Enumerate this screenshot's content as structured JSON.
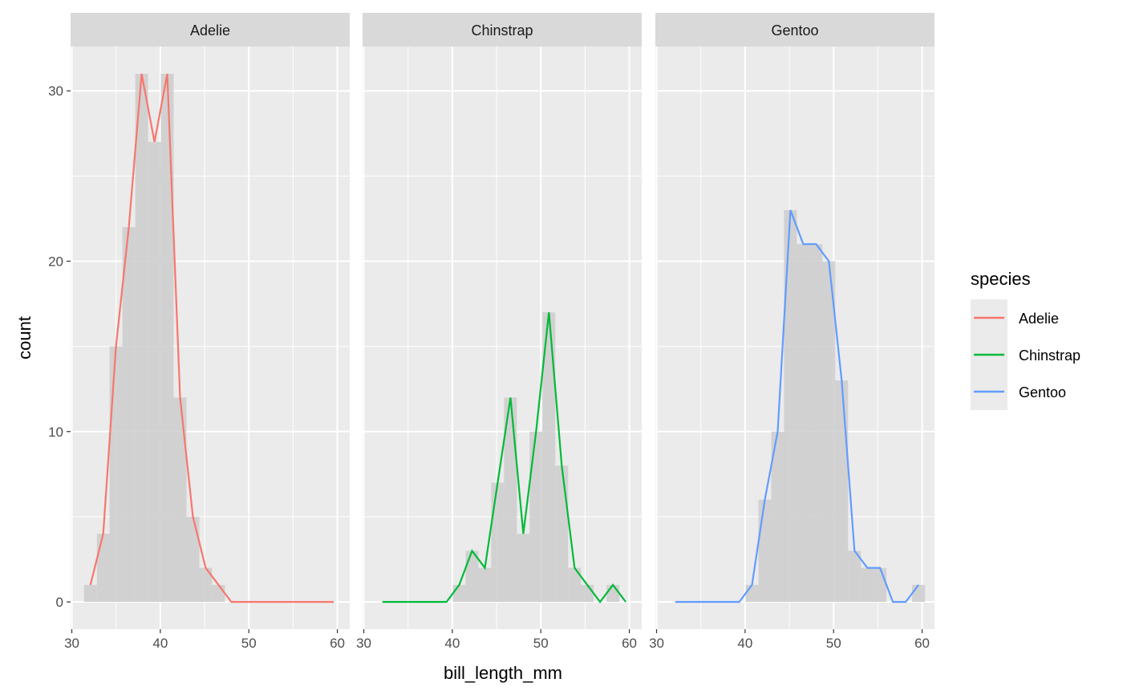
{
  "chart_data": {
    "type": "histogram+freqpoly",
    "facet_by": "species",
    "xlabel": "bill_length_mm",
    "ylabel": "count",
    "x_ticks": [
      30,
      40,
      50,
      60
    ],
    "y_ticks": [
      0,
      10,
      20,
      30
    ],
    "xlim": [
      29.86,
      61.4
    ],
    "ylim": [
      -1.6,
      32.6
    ],
    "grid": true,
    "bin_centers": [
      32.1,
      33.55,
      34.99,
      36.44,
      37.89,
      39.34,
      40.78,
      42.23,
      43.68,
      45.12,
      46.57,
      48.02,
      49.46,
      50.91,
      52.36,
      53.81,
      55.25,
      56.7,
      58.15,
      59.6
    ],
    "histogram_fill": "#cccccc",
    "panels": [
      {
        "name": "Adelie",
        "color": "#F8766D",
        "counts": [
          1,
          4,
          15,
          22,
          31,
          27,
          31,
          12,
          5,
          2,
          1,
          0,
          0,
          0,
          0,
          0,
          0,
          0,
          0,
          0
        ]
      },
      {
        "name": "Chinstrap",
        "color": "#00BA38",
        "counts": [
          0,
          0,
          0,
          0,
          0,
          0,
          1,
          3,
          2,
          7,
          12,
          4,
          10,
          17,
          8,
          2,
          1,
          0,
          1,
          0
        ]
      },
      {
        "name": "Gentoo",
        "color": "#619CFF",
        "counts": [
          0,
          0,
          0,
          0,
          0,
          0,
          1,
          6,
          10,
          23,
          21,
          21,
          20,
          13,
          3,
          2,
          2,
          0,
          0,
          1
        ]
      }
    ],
    "legend": {
      "title": "species",
      "position": "right",
      "entries": [
        "Adelie",
        "Chinstrap",
        "Gentoo"
      ]
    }
  }
}
